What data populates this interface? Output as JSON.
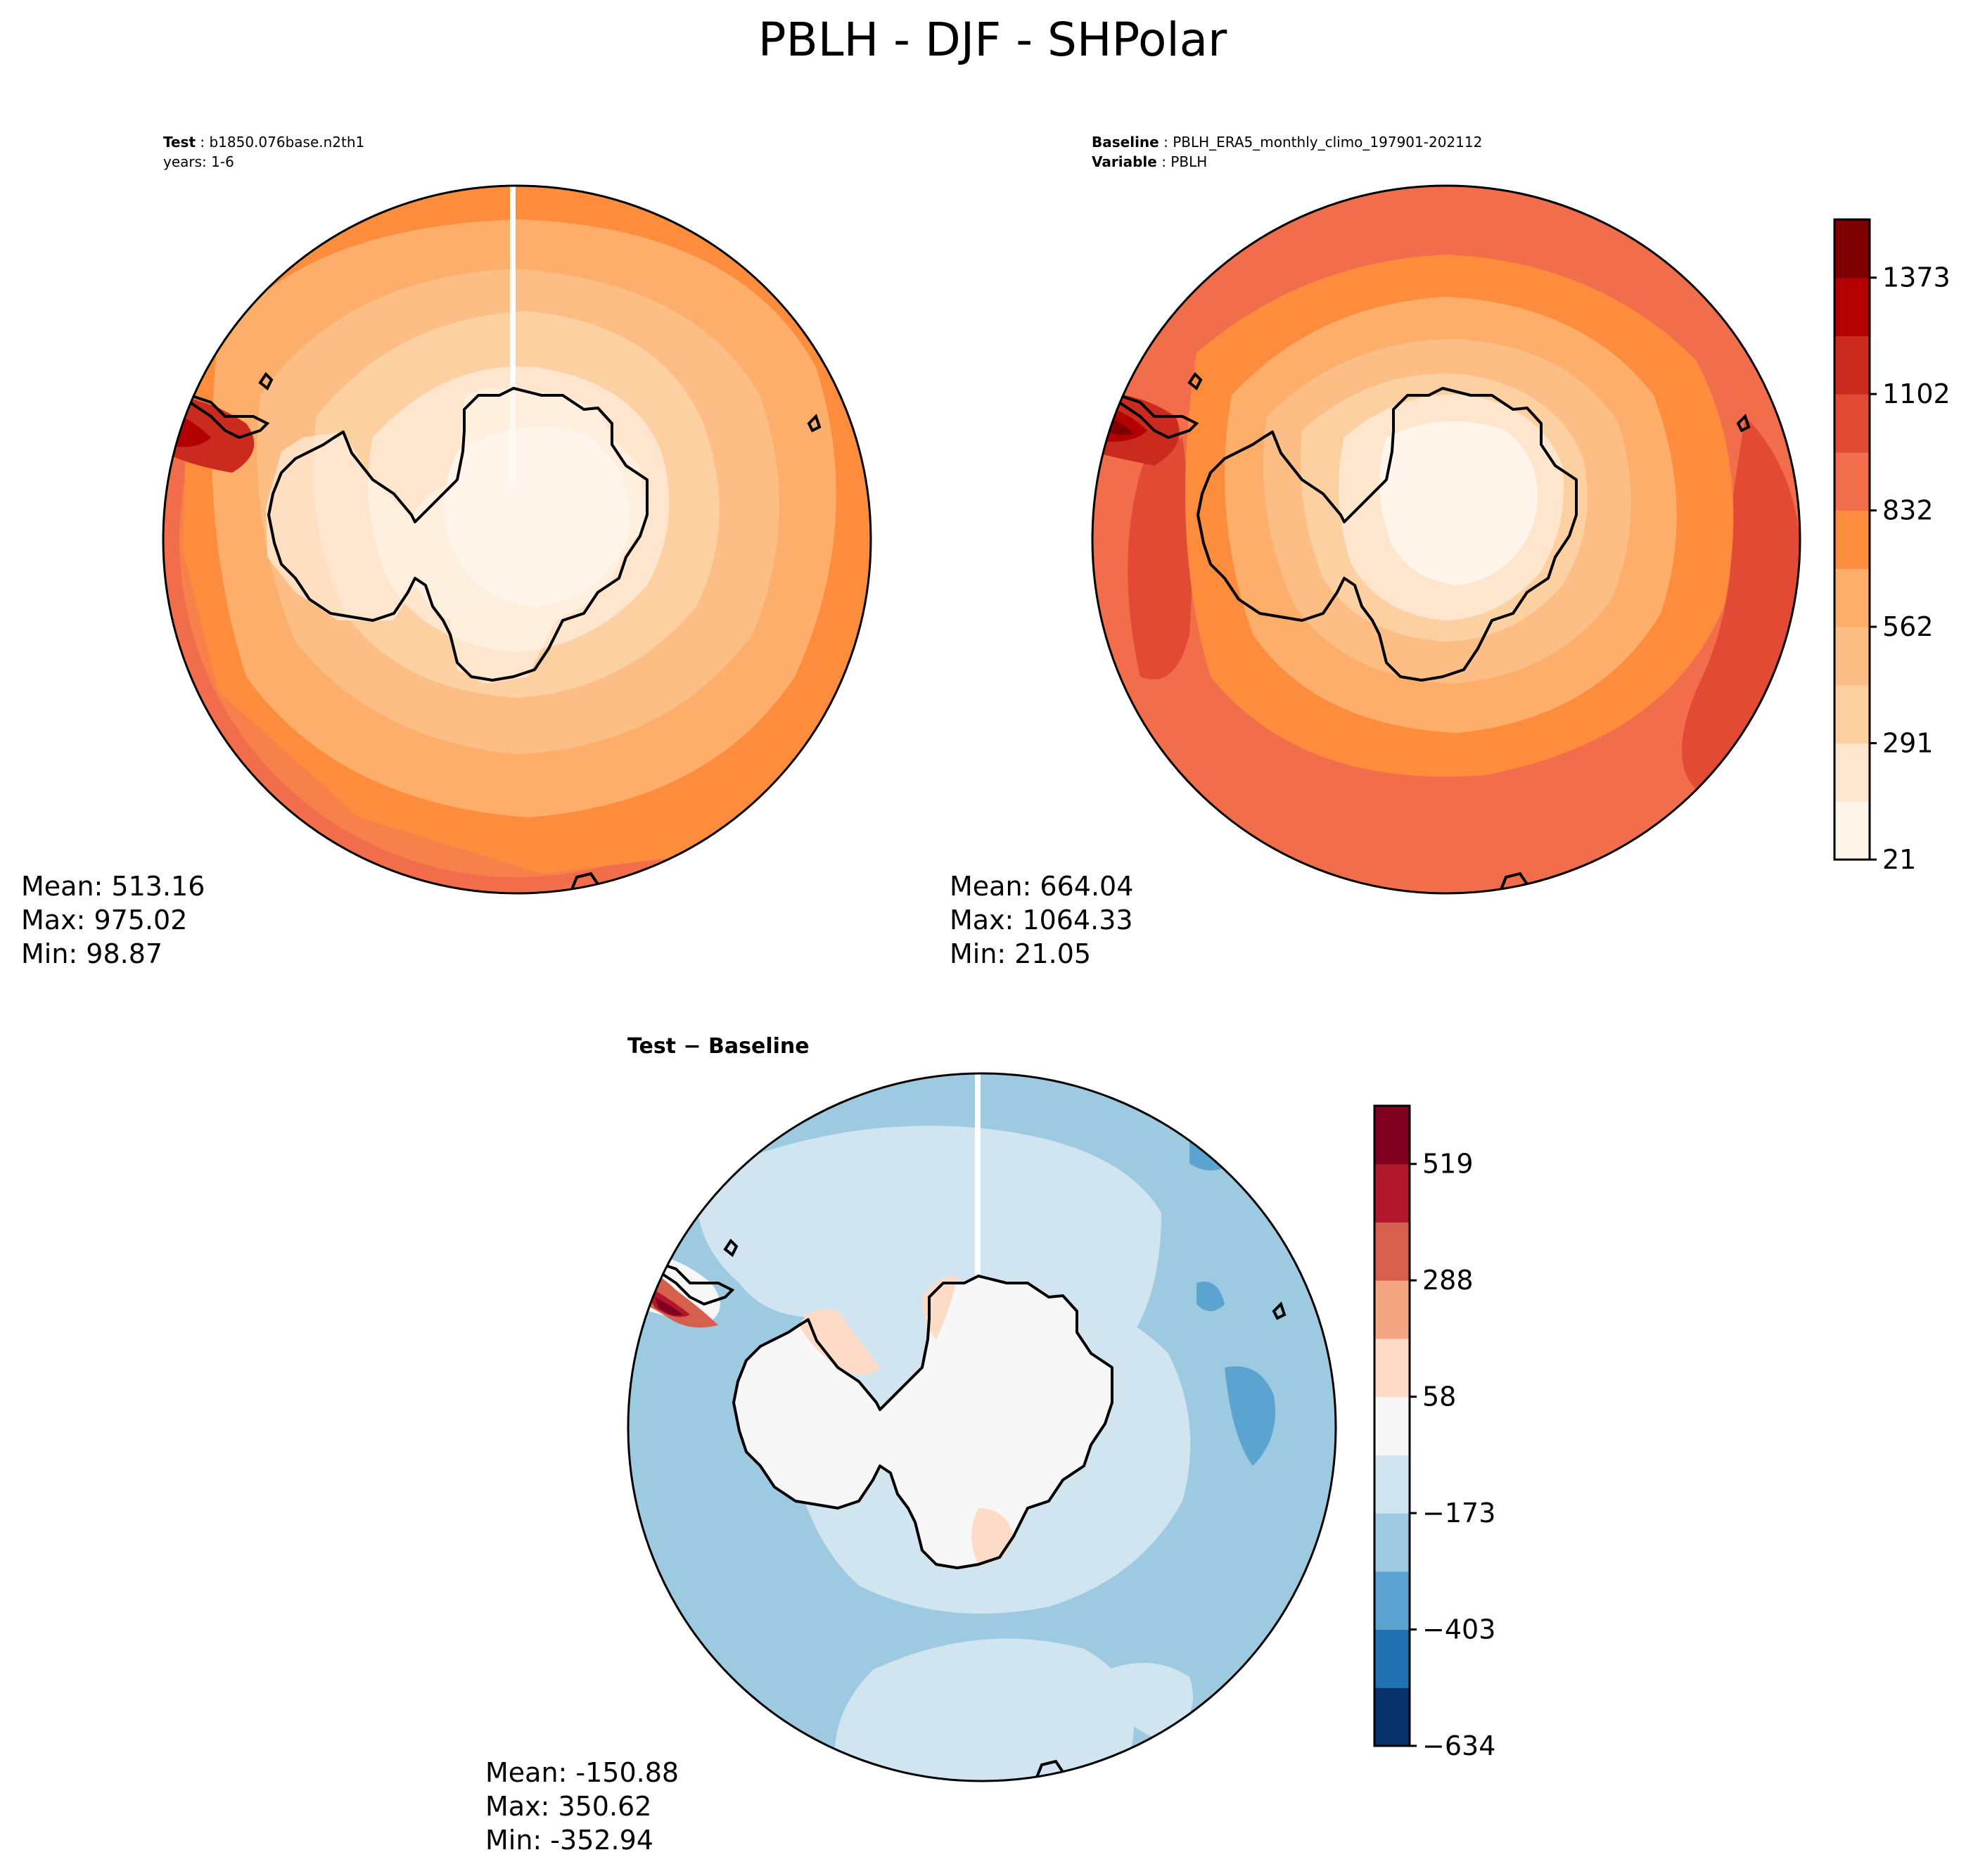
{
  "figure": {
    "title": "PBLH - DJF - SHPolar"
  },
  "panels": {
    "test": {
      "header_bold": "Test",
      "header_value": "b1850.076base.n2th1",
      "header_line2": "years: 1-6",
      "stats": {
        "mean": "Mean: 513.16",
        "max": "Max: 975.02",
        "min": "Min: 98.87"
      }
    },
    "baseline": {
      "header_bold": "Baseline",
      "header_value": "PBLH_ERA5_monthly_climo_197901-202112",
      "header2_bold": "Variable",
      "header2_value": "PBLH",
      "stats": {
        "mean": "Mean: 664.04",
        "max": "Max: 1064.33",
        "min": "Min: 21.05"
      }
    },
    "diff": {
      "title": "Test − Baseline",
      "stats": {
        "mean": "Mean: -150.88",
        "max": "Max: 350.62",
        "min": "Min: -352.94"
      }
    }
  },
  "colorbars": {
    "abs": {
      "colors": [
        "#fff5eb",
        "#fee6ce",
        "#fdd0a2",
        "#fdbe85",
        "#fdae6b",
        "#fd8d3c",
        "#f26d4b",
        "#e34a33",
        "#cb2a1f",
        "#b30000",
        "#7f0000"
      ],
      "ticks": [
        "21",
        "291",
        "562",
        "832",
        "1102",
        "1373"
      ]
    },
    "diff": {
      "colors": [
        "#08306b",
        "#2171b5",
        "#5ba3d0",
        "#9ecae1",
        "#d1e5f0",
        "#f7f7f7",
        "#fddbc7",
        "#f4a582",
        "#d6604d",
        "#b2182b",
        "#800020"
      ],
      "ticks": [
        "−634",
        "−403",
        "−173",
        "58",
        "288",
        "519"
      ]
    }
  }
}
